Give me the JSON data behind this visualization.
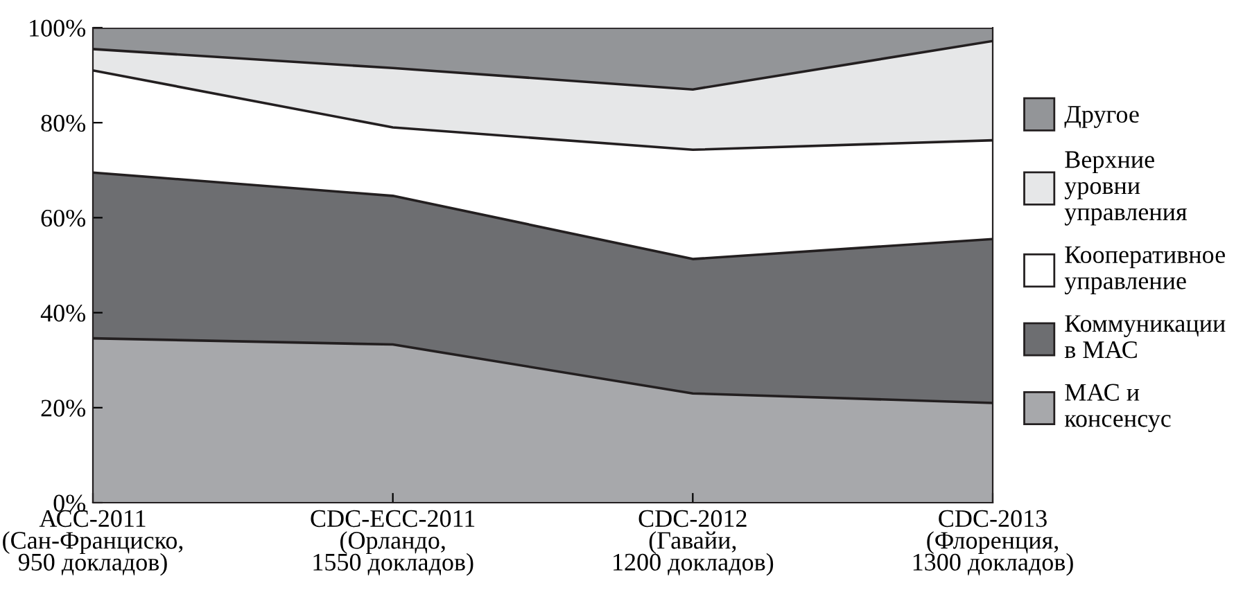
{
  "chart_data": {
    "type": "area",
    "stacked": true,
    "categories": [
      "АСС-2011\n(Сан-Франциско,\n950 докладов)",
      "CDC-ECC-2011\n(Орландо,\n1550 докладов)",
      "CDC-2012\n(Гавайи,\n1200 докладов)",
      "CDC-2013\n(Флоренция,\n1300 докладов)"
    ],
    "series": [
      {
        "name": "МАС и\nконсенсус",
        "color": "#a7a8ab",
        "values": [
          34.6,
          33.3,
          23,
          21
        ]
      },
      {
        "name": "Коммуникации\nв МАС",
        "color": "#6d6e71",
        "values": [
          34.9,
          31.3,
          28.3,
          34.5
        ]
      },
      {
        "name": "Кооперативное\nуправление",
        "color": "#ffffff",
        "values": [
          21.5,
          14.4,
          23,
          20.8
        ]
      },
      {
        "name": "Верхние\nуровни\nуправления",
        "color": "#e6e7e8",
        "values": [
          4.5,
          12.5,
          12.7,
          20.9
        ]
      },
      {
        "name": "Другое",
        "color": "#939598",
        "values": [
          4.5,
          8.5,
          13,
          2.8
        ]
      }
    ],
    "ylim": [
      0,
      100
    ],
    "yticks": [
      {
        "value": 0,
        "label": "0%"
      },
      {
        "value": 20,
        "label": "20%"
      },
      {
        "value": 40,
        "label": "40%"
      },
      {
        "value": 60,
        "label": "60%"
      },
      {
        "value": 80,
        "label": "80%"
      },
      {
        "value": 100,
        "label": "100%"
      }
    ],
    "legend": "right",
    "grid": false
  }
}
